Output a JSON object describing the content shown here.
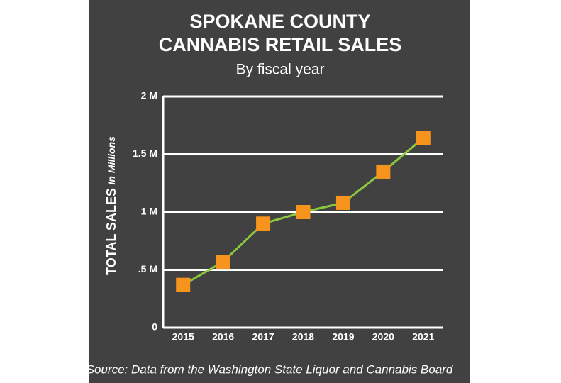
{
  "chart_data": {
    "type": "line",
    "title": [
      "SPOKANE COUNTY",
      "CANNABIS RETAIL SALES"
    ],
    "subtitle": "By fiscal year",
    "y_label": "TOTAL SALES",
    "y_label_note": "In Millions",
    "source": "Source: Data from the Washington State Liquor and Cannabis Board",
    "categories": [
      "2015",
      "2016",
      "2017",
      "2018",
      "2019",
      "2020",
      "2021"
    ],
    "series": [
      {
        "color": "#8dc63f",
        "marker_color": "#f7941d",
        "values": [
          0.37,
          0.57,
          0.9,
          1.0,
          1.08,
          1.35,
          1.64
        ]
      }
    ],
    "ylim": [
      0,
      2
    ],
    "yticks": [
      0,
      {
        "value": 0.5,
        "label": ".5 M"
      },
      {
        "value": 1,
        "label": "1 M"
      },
      {
        "value": 1.5,
        "label": "1.5 M"
      },
      {
        "value": 2,
        "label": "2 M"
      }
    ],
    "grid": true
  }
}
